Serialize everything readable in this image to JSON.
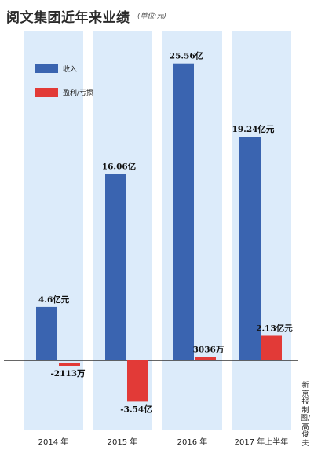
{
  "header": {
    "title": "阅文集团近年来业绩",
    "unit": "(单位:元)"
  },
  "credit": "新京报制图/高俊夫",
  "colors": {
    "revenue": "#3a64b0",
    "profit": "#e23a37",
    "panel": "#dcebfa"
  },
  "chart_data": {
    "type": "bar",
    "title": "阅文集团近年来业绩",
    "unit": "(单位:元)",
    "categories": [
      "2014 年",
      "2015 年",
      "2016 年",
      "2017 年上半年"
    ],
    "legend_position": "top-left",
    "grid": false,
    "series": [
      {
        "name": "收入",
        "values_yi": [
          4.6,
          16.06,
          25.56,
          19.24
        ],
        "labels": [
          "4.6亿元",
          "16.06亿",
          "25.56亿",
          "19.24亿元"
        ]
      },
      {
        "name": "盈利/亏损",
        "values_yi": [
          -0.2113,
          -3.54,
          0.3036,
          2.13
        ],
        "labels": [
          "-2113万",
          "-3.54亿",
          "3036万",
          "2.13亿元"
        ]
      }
    ]
  }
}
